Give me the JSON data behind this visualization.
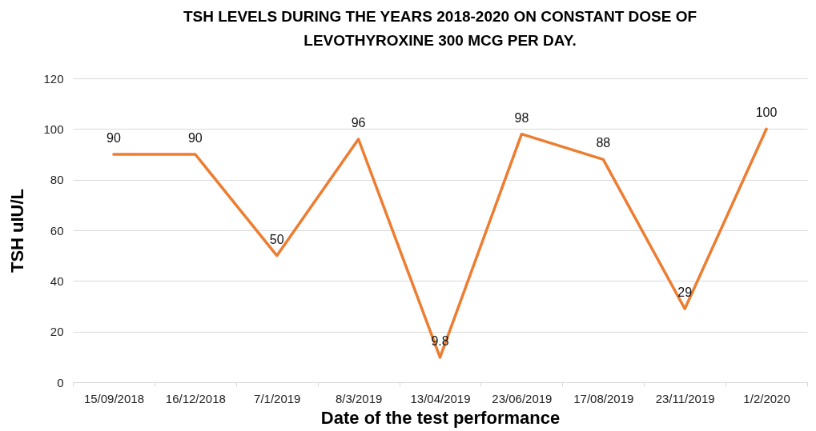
{
  "chart_data": {
    "type": "line",
    "title": "TSH LEVELS DURING THE YEARS 2018-2020 ON CONSTANT DOSE OF LEVOTHYROXINE 300 MCG PER DAY.",
    "xlabel": "Date of the test performance",
    "ylabel": "TSH uIU/L",
    "categories": [
      "15/09/2018",
      "16/12/2018",
      "7/1/2019",
      "8/3/2019",
      "13/04/2019",
      "23/06/2019",
      "17/08/2019",
      "23/11/2019",
      "1/2/2020"
    ],
    "values": [
      90,
      90,
      50,
      96,
      9.8,
      98,
      88,
      29,
      100
    ],
    "color": "#ed7d31",
    "ylim": [
      0,
      120
    ],
    "yticks": [
      0,
      20,
      40,
      60,
      80,
      100,
      120
    ],
    "grid": "y",
    "data_labels": true
  }
}
